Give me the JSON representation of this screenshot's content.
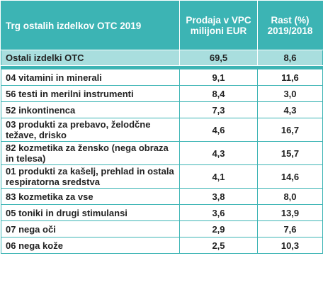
{
  "table": {
    "header": [
      "Trg ostalih izdelkov OTC 2019",
      "Prodaja v VPC milijoni EUR",
      "Rast (%) 2019/2018"
    ],
    "summary": [
      "Ostali izdelki OTC",
      "69,5",
      "8,6"
    ],
    "rows": [
      [
        "04 vitamini in minerali",
        "9,1",
        "11,6"
      ],
      [
        "56 testi in merilni instrumenti",
        "8,4",
        "3,0"
      ],
      [
        "52 inkontinenca",
        "7,3",
        "4,3"
      ],
      [
        "03 produkti za prebavo, želodčne težave, drisko",
        "4,6",
        "16,7"
      ],
      [
        "82 kozmetika za žensko (nega obraza in telesa)",
        "4,3",
        "15,7"
      ],
      [
        "01 produkti za kašelj, prehlad in ostala respiratorna sredstva",
        "4,1",
        "14,6"
      ],
      [
        "83 kozmetika za vse",
        "3,8",
        "8,0"
      ],
      [
        "05 toniki in drugi stimulansi",
        "3,6",
        "13,9"
      ],
      [
        "07 nega oči",
        "2,9",
        "7,6"
      ],
      [
        "06 nega kože",
        "2,5",
        "10,3"
      ]
    ]
  }
}
